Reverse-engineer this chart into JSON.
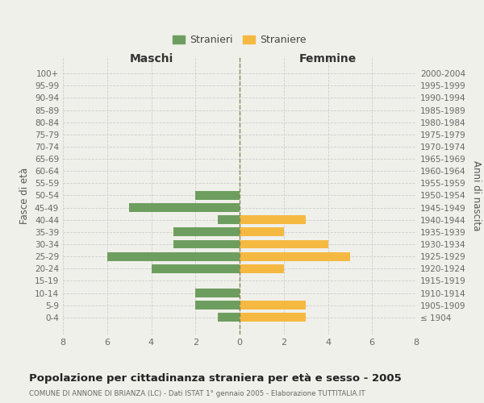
{
  "age_groups": [
    "100+",
    "95-99",
    "90-94",
    "85-89",
    "80-84",
    "75-79",
    "70-74",
    "65-69",
    "60-64",
    "55-59",
    "50-54",
    "45-49",
    "40-44",
    "35-39",
    "30-34",
    "25-29",
    "20-24",
    "15-19",
    "10-14",
    "5-9",
    "0-4"
  ],
  "birth_years": [
    "≤ 1904",
    "1905-1909",
    "1910-1914",
    "1915-1919",
    "1920-1924",
    "1925-1929",
    "1930-1934",
    "1935-1939",
    "1940-1944",
    "1945-1949",
    "1950-1954",
    "1955-1959",
    "1960-1964",
    "1965-1969",
    "1970-1974",
    "1975-1979",
    "1980-1984",
    "1985-1989",
    "1990-1994",
    "1995-1999",
    "2000-2004"
  ],
  "males": [
    0,
    0,
    0,
    0,
    0,
    0,
    0,
    0,
    0,
    0,
    2,
    5,
    1,
    3,
    3,
    6,
    4,
    0,
    2,
    2,
    1
  ],
  "females": [
    0,
    0,
    0,
    0,
    0,
    0,
    0,
    0,
    0,
    0,
    0,
    0,
    3,
    2,
    4,
    5,
    2,
    0,
    0,
    3,
    3
  ],
  "male_color": "#6e9e5f",
  "female_color": "#f5b942",
  "background_color": "#f0f0eb",
  "grid_color": "#cccccc",
  "title": "Popolazione per cittadinanza straniera per età e sesso - 2005",
  "subtitle": "COMUNE DI ANNONE DI BRIANZA (LC) - Dati ISTAT 1° gennaio 2005 - Elaborazione TUTTITALIA.IT",
  "xlabel_left": "Maschi",
  "xlabel_right": "Femmine",
  "ylabel_left": "Fasce di età",
  "ylabel_right": "Anni di nascita",
  "legend_males": "Stranieri",
  "legend_females": "Straniere",
  "xlim": 8,
  "bar_height": 0.72
}
